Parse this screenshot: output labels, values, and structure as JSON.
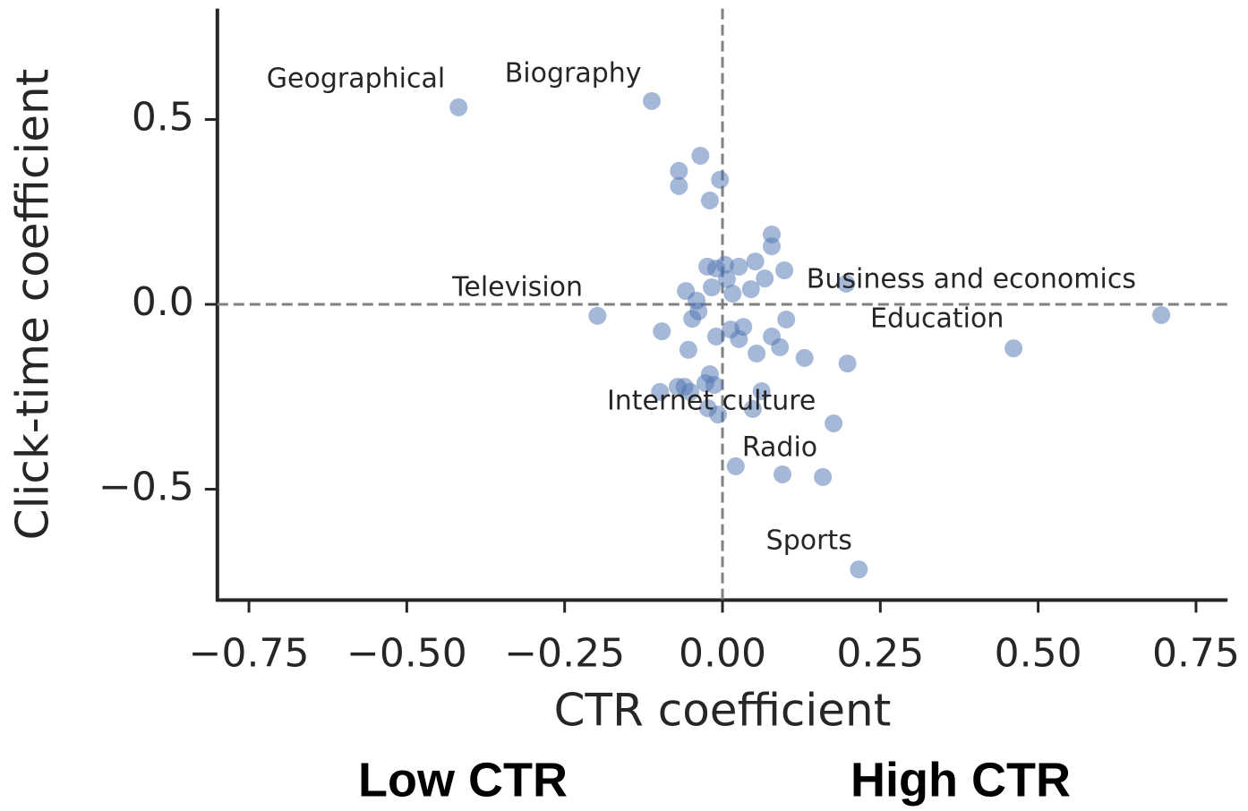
{
  "chart_data": {
    "type": "scatter",
    "xlabel": "CTR coefficient",
    "ylabel": "Click-time coefficient",
    "color": "#4c72b0",
    "xlim": [
      -0.8,
      0.8
    ],
    "ylim": [
      -0.8,
      0.8
    ],
    "xticks": [
      {
        "value": -0.75,
        "label": "−0.75"
      },
      {
        "value": -0.5,
        "label": "−0.50"
      },
      {
        "value": -0.25,
        "label": "−0.25"
      },
      {
        "value": 0,
        "label": "0.00"
      },
      {
        "value": 0.25,
        "label": "0.25"
      },
      {
        "value": 0.5,
        "label": "0.50"
      },
      {
        "value": 0.75,
        "label": "0.75"
      }
    ],
    "yticks": [
      {
        "value": 0.5,
        "label": "0.5"
      },
      {
        "value": 0,
        "label": "0.0"
      },
      {
        "value": -0.5,
        "label": "−0.5"
      }
    ],
    "reference_lines": {
      "x": 0,
      "y": 0
    },
    "x": [
      -0.418,
      -0.112,
      -0.035,
      -0.069,
      -0.069,
      -0.004,
      -0.02,
      0.078,
      0.078,
      0.052,
      0.098,
      -0.024,
      0.004,
      0.026,
      -0.01,
      0.007,
      0.067,
      -0.017,
      0.016,
      0.045,
      -0.058,
      0.196,
      -0.041,
      -0.038,
      -0.048,
      -0.198,
      0.695,
      0.461,
      0.101,
      0.033,
      0.013,
      -0.096,
      -0.01,
      0.026,
      0.078,
      0.091,
      0.054,
      -0.054,
      0.13,
      0.198,
      -0.02,
      -0.027,
      -0.013,
      -0.071,
      -0.06,
      -0.099,
      -0.051,
      0.062,
      -0.023,
      0.048,
      -0.007,
      0.176,
      0.021,
      0.095,
      0.159,
      0.216
    ],
    "values": [
      0.533,
      0.55,
      0.402,
      0.361,
      0.32,
      0.337,
      0.281,
      0.189,
      0.157,
      0.116,
      0.092,
      0.102,
      0.107,
      0.102,
      0.097,
      0.068,
      0.07,
      0.046,
      0.029,
      0.041,
      0.036,
      0.056,
      0.01,
      -0.019,
      -0.039,
      -0.031,
      -0.029,
      -0.119,
      -0.041,
      -0.061,
      -0.068,
      -0.073,
      -0.087,
      -0.094,
      -0.087,
      -0.116,
      -0.133,
      -0.123,
      -0.145,
      -0.16,
      -0.189,
      -0.213,
      -0.218,
      -0.223,
      -0.223,
      -0.237,
      -0.237,
      -0.235,
      -0.281,
      -0.283,
      -0.298,
      -0.322,
      -0.438,
      -0.46,
      -0.467,
      -0.717
    ],
    "annotations": [
      {
        "text": "Geographical",
        "x": -0.722,
        "y": 0.608
      },
      {
        "text": "Biography",
        "x": -0.345,
        "y": 0.622
      },
      {
        "text": "Television",
        "x": -0.428,
        "y": 0.044
      },
      {
        "text": "Business and economics",
        "x": 0.133,
        "y": 0.065
      },
      {
        "text": "Education",
        "x": 0.234,
        "y": -0.041
      },
      {
        "text": "Internet culture",
        "x": -0.183,
        "y": -0.264
      },
      {
        "text": "Radio",
        "x": 0.031,
        "y": -0.39
      },
      {
        "text": "Sports",
        "x": 0.069,
        "y": -0.642
      }
    ],
    "bottom_labels": [
      "Low CTR",
      "High CTR"
    ]
  }
}
